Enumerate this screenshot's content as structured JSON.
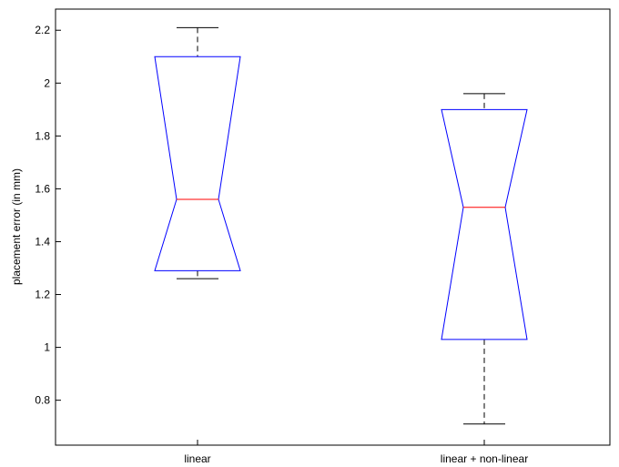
{
  "chart_data": {
    "type": "box",
    "title": "",
    "xlabel": "",
    "ylabel": "placement error (in mm)",
    "ylim": [
      0.63,
      2.28
    ],
    "yticks": [
      0.8,
      1,
      1.2,
      1.4,
      1.6,
      1.8,
      2,
      2.2
    ],
    "ytick_labels": [
      "0.8",
      "1",
      "1.2",
      "1.4",
      "1.6",
      "1.8",
      "2",
      "2.2"
    ],
    "categories": [
      "linear",
      "linear + non-linear"
    ],
    "notched": true,
    "grid": false,
    "boxes": [
      {
        "category": "linear",
        "whisker_low": 1.26,
        "q1": 1.29,
        "median": 1.56,
        "q3": 2.1,
        "whisker_high": 2.21,
        "notch_low": 1.29,
        "notch_high": 2.1
      },
      {
        "category": "linear + non-linear",
        "whisker_low": 0.71,
        "q1": 1.03,
        "median": 1.53,
        "q3": 1.9,
        "whisker_high": 1.96,
        "notch_low": 1.03,
        "notch_high": 1.9
      }
    ],
    "colors": {
      "box": "#0000ff",
      "median": "#ff0000",
      "whisker": "#000000",
      "axis": "#000000"
    }
  }
}
